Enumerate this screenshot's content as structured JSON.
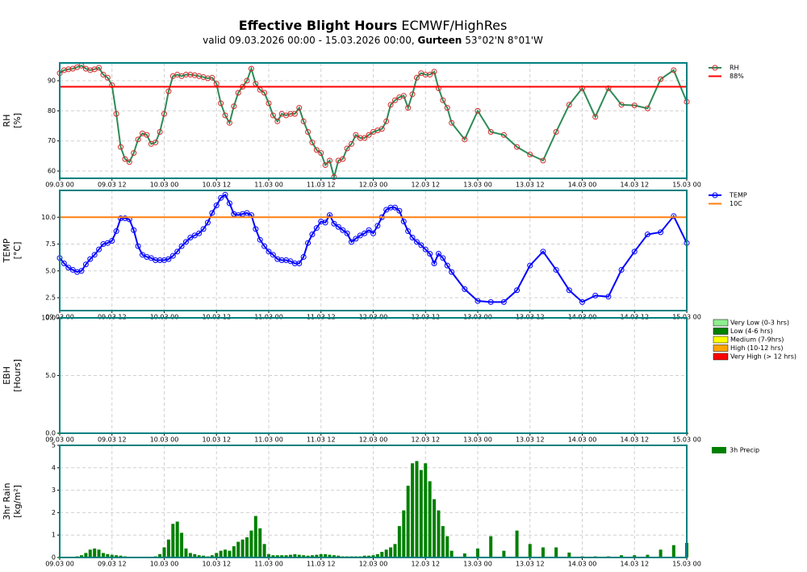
{
  "header": {
    "title_bold": "Effective Blight Hours",
    "title_rest": "ECMWF/HighRes",
    "subtitle_prefix": "valid 09.03.2026 00:00 - 15.03.2026 00:00,",
    "subtitle_place": "Gurteen",
    "subtitle_coords": "53°02'N 8°01'W"
  },
  "chart_data": [
    {
      "type": "line",
      "ylabel": [
        "RH",
        "[%]"
      ],
      "grid": true,
      "x": [
        0,
        1,
        2,
        3,
        4,
        5,
        6,
        7,
        8,
        9,
        10,
        11,
        12,
        13,
        14,
        15,
        16,
        17,
        18,
        19,
        20,
        21,
        22,
        23,
        24,
        25,
        26,
        27,
        28,
        29,
        30,
        31,
        32,
        33,
        34,
        35,
        36,
        37,
        38,
        39,
        40,
        41,
        42,
        43,
        44,
        45,
        46,
        47,
        48,
        49,
        50,
        51,
        52,
        53,
        54,
        55,
        56,
        57,
        58,
        59,
        60,
        61,
        62,
        63,
        64,
        65,
        66,
        67,
        68,
        69,
        70,
        71,
        72,
        73,
        74,
        75,
        76,
        77,
        78,
        79,
        80,
        81,
        82,
        83,
        84,
        85,
        86,
        87,
        88,
        89,
        90,
        93,
        96,
        99,
        102,
        105,
        108,
        111,
        114,
        117,
        120,
        123,
        126,
        129,
        132,
        135,
        138,
        141,
        144
      ],
      "xlim": [
        0,
        144
      ],
      "xticks": [
        {
          "value": 0,
          "label": "09.03 00"
        },
        {
          "value": 12,
          "label": "09.03 12"
        },
        {
          "value": 24,
          "label": "10.03 00"
        },
        {
          "value": 36,
          "label": "10.03 12"
        },
        {
          "value": 48,
          "label": "11.03 00"
        },
        {
          "value": 60,
          "label": "11.03 12"
        },
        {
          "value": 72,
          "label": "12.03 00"
        },
        {
          "value": 84,
          "label": "12.03 12"
        },
        {
          "value": 96,
          "label": "13.03 00"
        },
        {
          "value": 108,
          "label": "13.03 12"
        },
        {
          "value": 120,
          "label": "14.03 00"
        },
        {
          "value": 132,
          "label": "14.03 12"
        },
        {
          "value": 144,
          "label": "15.03 00"
        }
      ],
      "ylim": [
        57.6,
        95.9
      ],
      "yticks": [
        60,
        70,
        80,
        90
      ],
      "series": [
        {
          "name": "RH",
          "color": "#2e8b57",
          "marker_color": "#d62728",
          "values": [
            92.5,
            93.5,
            93.8,
            94,
            94.5,
            95,
            94,
            93.5,
            93.8,
            94.3,
            92,
            91,
            88.5,
            79,
            68,
            64,
            63,
            66,
            70.5,
            72.5,
            72,
            69,
            69.5,
            73,
            79,
            86.5,
            91.5,
            92,
            91.5,
            92,
            92,
            91.8,
            91.5,
            91.2,
            90.8,
            91,
            89,
            82.5,
            78.5,
            76,
            81.5,
            86,
            88,
            90,
            94,
            89,
            87,
            86,
            82.5,
            78.5,
            76.5,
            79,
            78.5,
            79,
            79,
            81,
            76.5,
            73,
            69.5,
            67,
            66,
            62,
            63.5,
            58,
            63.5,
            64,
            67.5,
            69,
            72,
            71,
            71,
            72,
            73,
            73.5,
            74,
            76.5,
            82,
            83.5,
            84.5,
            85,
            81,
            85.5,
            91,
            92.5,
            92,
            92,
            93,
            87.5,
            83.5,
            81,
            76,
            70.5,
            80,
            73,
            72,
            68,
            65.5,
            63.5,
            73,
            82,
            87.5,
            78,
            87.5,
            82,
            81.8,
            80.8,
            90.5,
            93.5,
            83
          ]
        },
        {
          "name": "88%",
          "color": "#ff0000",
          "value": 88
        }
      ]
    },
    {
      "type": "line",
      "ylabel": [
        "TEMP",
        "[°C]"
      ],
      "grid": true,
      "x": [
        0,
        1,
        2,
        3,
        4,
        5,
        6,
        7,
        8,
        9,
        10,
        11,
        12,
        13,
        14,
        15,
        16,
        17,
        18,
        19,
        20,
        21,
        22,
        23,
        24,
        25,
        26,
        27,
        28,
        29,
        30,
        31,
        32,
        33,
        34,
        35,
        36,
        37,
        38,
        39,
        40,
        41,
        42,
        43,
        44,
        45,
        46,
        47,
        48,
        49,
        50,
        51,
        52,
        53,
        54,
        55,
        56,
        57,
        58,
        59,
        60,
        61,
        62,
        63,
        64,
        65,
        66,
        67,
        68,
        69,
        70,
        71,
        72,
        73,
        74,
        75,
        76,
        77,
        78,
        79,
        80,
        81,
        82,
        83,
        84,
        85,
        86,
        87,
        88,
        89,
        90,
        93,
        96,
        99,
        102,
        105,
        108,
        111,
        114,
        117,
        120,
        123,
        126,
        129,
        132,
        135,
        138,
        141,
        144
      ],
      "xlim": [
        0,
        144
      ],
      "xticks": [
        {
          "value": 0,
          "label": "09.03 00"
        },
        {
          "value": 12,
          "label": "09.03 12"
        },
        {
          "value": 24,
          "label": "10.03 00"
        },
        {
          "value": 36,
          "label": "10.03 12"
        },
        {
          "value": 48,
          "label": "11.03 00"
        },
        {
          "value": 60,
          "label": "11.03 12"
        },
        {
          "value": 72,
          "label": "12.03 00"
        },
        {
          "value": 84,
          "label": "12.03 12"
        },
        {
          "value": 96,
          "label": "13.03 00"
        },
        {
          "value": 108,
          "label": "13.03 12"
        },
        {
          "value": 120,
          "label": "14.03 00"
        },
        {
          "value": 132,
          "label": "14.03 12"
        },
        {
          "value": 144,
          "label": "15.03 00"
        }
      ],
      "ylim": [
        1.3,
        12.5
      ],
      "yticks": [
        2.5,
        {
          "value": 5,
          "label": "5.0"
        },
        7.5,
        {
          "value": 10,
          "label": "10.0"
        }
      ],
      "series": [
        {
          "name": "TEMP",
          "color": "#0000ff",
          "marker_color": "#0000ff",
          "values": [
            6.2,
            5.7,
            5.3,
            5.1,
            4.9,
            5.0,
            5.6,
            6.1,
            6.5,
            7.0,
            7.5,
            7.6,
            7.8,
            8.7,
            9.9,
            9.9,
            9.8,
            8.8,
            7.3,
            6.5,
            6.3,
            6.2,
            6.0,
            6.0,
            6.0,
            6.1,
            6.4,
            6.8,
            7.3,
            7.7,
            8.1,
            8.3,
            8.5,
            8.9,
            9.5,
            10.4,
            11.1,
            11.8,
            12.1,
            11.3,
            10.3,
            10.2,
            10.3,
            10.4,
            10.2,
            8.9,
            7.9,
            7.3,
            6.8,
            6.5,
            6.1,
            6.0,
            6.0,
            5.9,
            5.7,
            5.7,
            6.3,
            7.6,
            8.4,
            9.0,
            9.6,
            9.5,
            10.2,
            9.4,
            9.1,
            8.8,
            8.5,
            7.7,
            8.0,
            8.3,
            8.5,
            8.8,
            8.5,
            9.2,
            10.0,
            10.7,
            10.9,
            10.9,
            10.6,
            9.6,
            8.7,
            8.1,
            7.7,
            7.4,
            7.0,
            6.6,
            5.7,
            6.6,
            6.2,
            5.5,
            4.9,
            3.3,
            2.2,
            2.1,
            2.1,
            3.2,
            5.5,
            6.8,
            5.1,
            3.2,
            2.1,
            2.7,
            2.6,
            5.1,
            6.8,
            8.4,
            8.6,
            10.1,
            7.6
          ]
        },
        {
          "name": "10C",
          "color": "#ff7f0e",
          "value": 10
        }
      ]
    },
    {
      "type": "bar",
      "ylabel": [
        "EBH",
        "[Hours]"
      ],
      "grid": true,
      "color": "#006400",
      "x": [
        0,
        3,
        6,
        9,
        12,
        15,
        18,
        21,
        24,
        27,
        30,
        33,
        36,
        39,
        42,
        45,
        48,
        51,
        54,
        57,
        60,
        63,
        66,
        69,
        72,
        75,
        78,
        81,
        84,
        87,
        90,
        93,
        96,
        99,
        102,
        105,
        108,
        111,
        114,
        117,
        120,
        123,
        126,
        129,
        132,
        135,
        138,
        141,
        144
      ],
      "values": [
        0,
        0,
        0,
        0,
        0,
        0,
        0,
        0,
        0,
        0,
        0,
        0,
        0,
        0,
        0,
        0,
        0,
        0,
        0,
        0,
        0,
        0,
        0,
        0,
        0,
        0,
        0,
        0,
        0,
        0,
        0,
        0,
        0,
        0,
        0,
        0,
        0,
        0,
        0,
        0,
        0,
        0,
        0,
        0,
        0,
        0,
        0,
        0,
        0
      ],
      "xlim": [
        0,
        144
      ],
      "xticks": [
        {
          "value": 0,
          "label": "09.03 00"
        },
        {
          "value": 12,
          "label": "09.03 12"
        },
        {
          "value": 24,
          "label": "10.03 00"
        },
        {
          "value": 36,
          "label": "10.03 12"
        },
        {
          "value": 48,
          "label": "11.03 00"
        },
        {
          "value": 60,
          "label": "11.03 12"
        },
        {
          "value": 72,
          "label": "12.03 00"
        },
        {
          "value": 84,
          "label": "12.03 12"
        },
        {
          "value": 96,
          "label": "13.03 00"
        },
        {
          "value": 108,
          "label": "13.03 12"
        },
        {
          "value": 120,
          "label": "14.03 00"
        },
        {
          "value": 132,
          "label": "14.03 12"
        },
        {
          "value": 144,
          "label": "15.03 00"
        }
      ],
      "ylim": [
        0,
        10
      ],
      "yticks": [
        {
          "value": 0,
          "label": "0.0"
        },
        {
          "value": 5,
          "label": "5.0"
        },
        {
          "value": 10,
          "label": "10.0"
        }
      ],
      "classes": [
        {
          "name": "Very Low (0-3 hrs)",
          "color": "#90ee90"
        },
        {
          "name": "Low (4-6 hrs)",
          "color": "#008000"
        },
        {
          "name": "Medium (7-9hrs)",
          "color": "#ffff00"
        },
        {
          "name": "High (10-12 hrs)",
          "color": "#ffa500"
        },
        {
          "name": "Very High (> 12 hrs)",
          "color": "#ff0000"
        }
      ]
    },
    {
      "type": "bar",
      "ylabel": [
        "3hr Rain",
        "[kg/m²]"
      ],
      "grid": true,
      "x": [
        0,
        1,
        2,
        3,
        4,
        5,
        6,
        7,
        8,
        9,
        10,
        11,
        12,
        13,
        14,
        15,
        16,
        17,
        18,
        19,
        20,
        21,
        22,
        23,
        24,
        25,
        26,
        27,
        28,
        29,
        30,
        31,
        32,
        33,
        34,
        35,
        36,
        37,
        38,
        39,
        40,
        41,
        42,
        43,
        44,
        45,
        46,
        47,
        48,
        49,
        50,
        51,
        52,
        53,
        54,
        55,
        56,
        57,
        58,
        59,
        60,
        61,
        62,
        63,
        64,
        65,
        66,
        67,
        68,
        69,
        70,
        71,
        72,
        73,
        74,
        75,
        76,
        77,
        78,
        79,
        80,
        81,
        82,
        83,
        84,
        85,
        86,
        87,
        88,
        89,
        90,
        93,
        96,
        99,
        102,
        105,
        108,
        111,
        114,
        117,
        120,
        123,
        126,
        129,
        132,
        135,
        138,
        141,
        144
      ],
      "xlim": [
        0,
        144
      ],
      "xticks": [
        {
          "value": 0,
          "label": "09.03 00"
        },
        {
          "value": 12,
          "label": "09.03 12"
        },
        {
          "value": 24,
          "label": "10.03 00"
        },
        {
          "value": 36,
          "label": "10.03 12"
        },
        {
          "value": 48,
          "label": "11.03 00"
        },
        {
          "value": 60,
          "label": "11.03 12"
        },
        {
          "value": 72,
          "label": "12.03 00"
        },
        {
          "value": 84,
          "label": "12.03 12"
        },
        {
          "value": 96,
          "label": "13.03 00"
        },
        {
          "value": 108,
          "label": "13.03 12"
        },
        {
          "value": 120,
          "label": "14.03 00"
        },
        {
          "value": 132,
          "label": "14.03 12"
        },
        {
          "value": 144,
          "label": "15.03 00"
        }
      ],
      "ylim": [
        0,
        5
      ],
      "yticks": [
        0,
        1,
        2,
        3,
        4,
        5
      ],
      "series": [
        {
          "name": "3h Precip",
          "color": "#008000",
          "values": [
            0,
            0,
            0,
            0.02,
            0.05,
            0.1,
            0.2,
            0.35,
            0.4,
            0.35,
            0.2,
            0.15,
            0.12,
            0.1,
            0.08,
            0.05,
            0.03,
            0.02,
            0.02,
            0.02,
            0.02,
            0.03,
            0.05,
            0.15,
            0.45,
            0.8,
            1.5,
            1.6,
            1.1,
            0.4,
            0.2,
            0.15,
            0.1,
            0.08,
            0.05,
            0.1,
            0.2,
            0.3,
            0.35,
            0.3,
            0.5,
            0.7,
            0.8,
            0.9,
            1.2,
            1.85,
            1.3,
            0.6,
            0.15,
            0.1,
            0.1,
            0.1,
            0.1,
            0.12,
            0.15,
            0.12,
            0.1,
            0.08,
            0.1,
            0.12,
            0.15,
            0.15,
            0.12,
            0.1,
            0.08,
            0.05,
            0.05,
            0.05,
            0.05,
            0.05,
            0.08,
            0.08,
            0.1,
            0.15,
            0.25,
            0.35,
            0.45,
            0.6,
            1.4,
            2.1,
            3.2,
            4.2,
            4.3,
            3.9,
            4.2,
            3.4,
            2.6,
            2.1,
            1.4,
            0.95,
            0.3,
            0.18,
            0.4,
            0.95,
            0.3,
            1.2,
            0.6,
            0.45,
            0.45,
            0.22,
            0.05,
            0.05,
            0.05,
            0.1,
            0.1,
            0.12,
            0.35,
            0.55,
            0.65
          ]
        }
      ]
    }
  ]
}
